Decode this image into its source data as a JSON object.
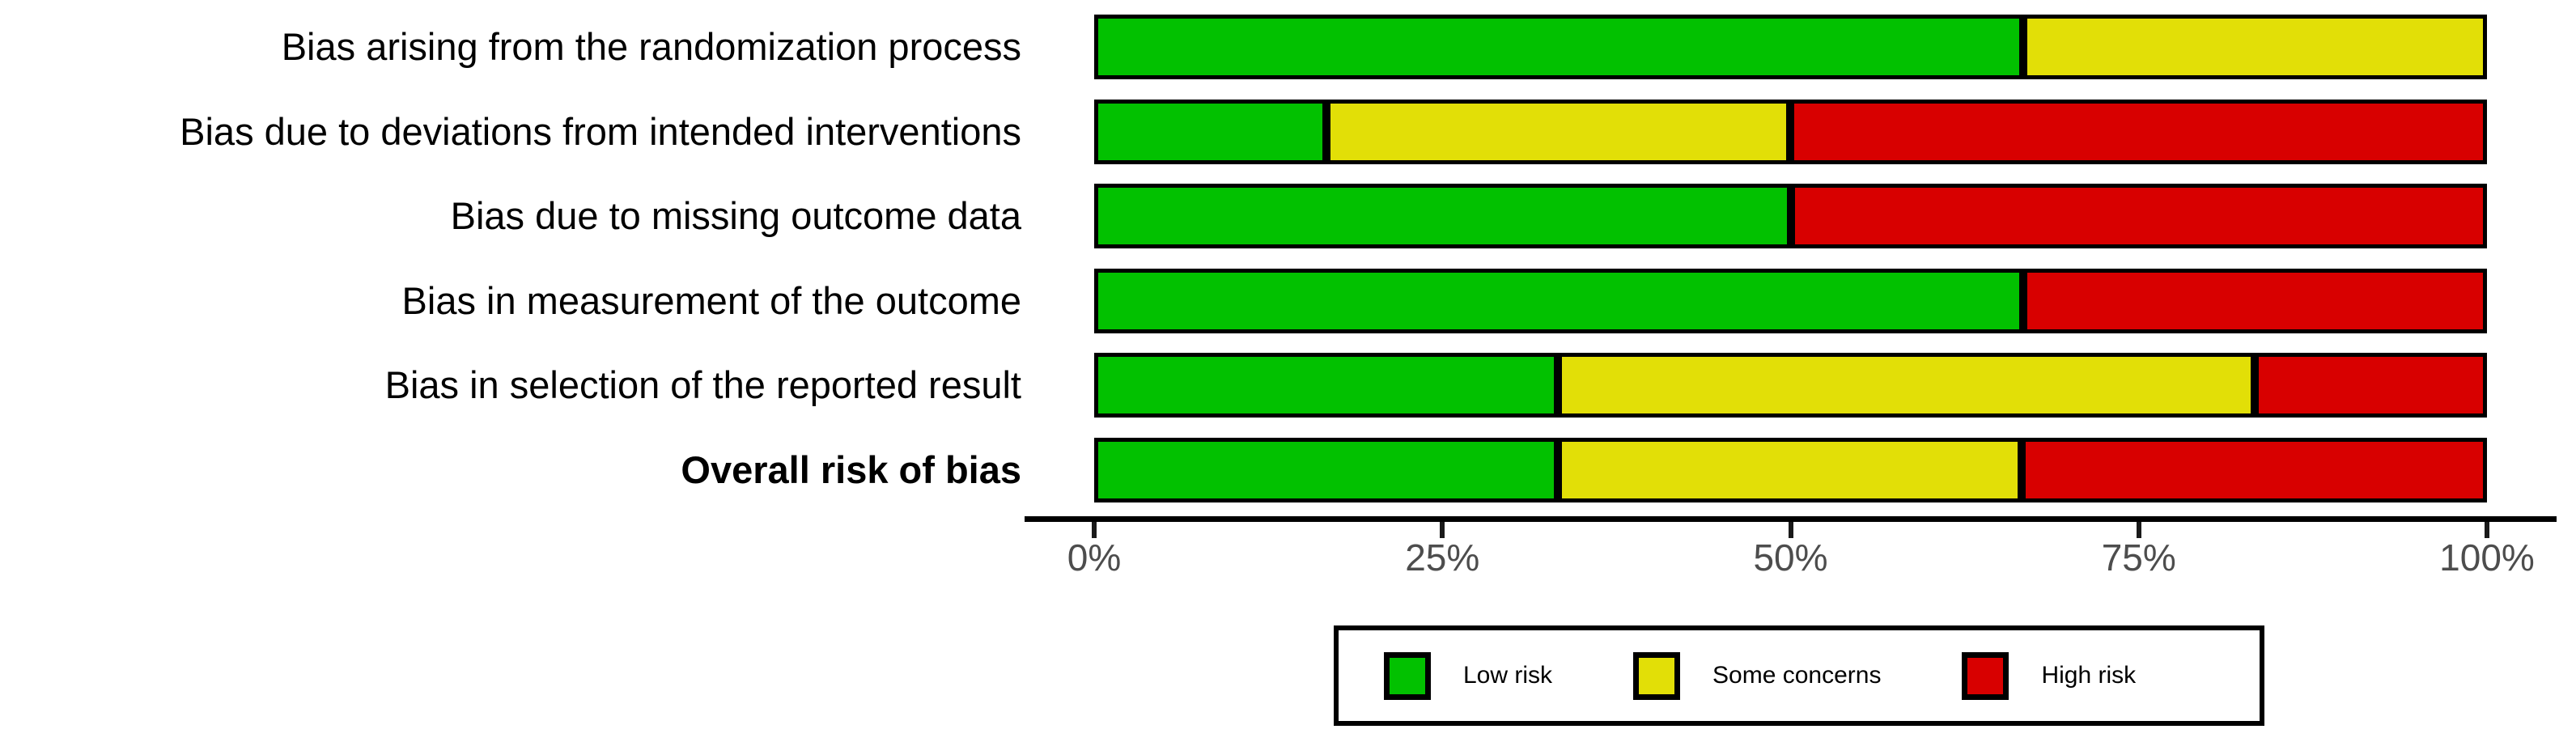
{
  "chart_data": {
    "type": "bar",
    "variant": "horizontal-stacked",
    "title": "",
    "xlabel": "",
    "ylabel": "",
    "x_range": [
      0,
      100
    ],
    "x_ticks": [
      "0%",
      "25%",
      "50%",
      "75%",
      "100%"
    ],
    "grid": false,
    "legend_position": "bottom",
    "categories": [
      "Bias arising from the randomization process",
      "Bias due to deviations from intended interventions",
      "Bias due to missing outcome data",
      "Bias in measurement of the outcome",
      "Bias in selection of the reported result",
      "Overall risk of bias"
    ],
    "bold_category": "Overall risk of bias",
    "series": [
      {
        "name": "Low risk",
        "color": "#02C100",
        "values": [
          66.7,
          16.7,
          50.0,
          66.7,
          33.3,
          33.3
        ]
      },
      {
        "name": "Some concerns",
        "color": "#E2DF07",
        "values": [
          33.3,
          33.3,
          0.0,
          0.0,
          50.0,
          33.3
        ]
      },
      {
        "name": "High risk",
        "color": "#D80000",
        "values": [
          0.0,
          50.0,
          50.0,
          33.3,
          16.7,
          33.4
        ]
      }
    ]
  },
  "legend": {
    "items": [
      {
        "label": "Low risk",
        "color": "#02C100"
      },
      {
        "label": "Some concerns",
        "color": "#E2DF07"
      },
      {
        "label": "High risk",
        "color": "#D80000"
      }
    ]
  },
  "colors": {
    "low_risk": "#02C100",
    "some_concerns": "#E2DF07",
    "high_risk": "#D80000",
    "bar_border": "#000000",
    "axis_line": "#000000",
    "axis_text": "#4d4d4d",
    "label_text": "#000000",
    "background": "#ffffff"
  }
}
